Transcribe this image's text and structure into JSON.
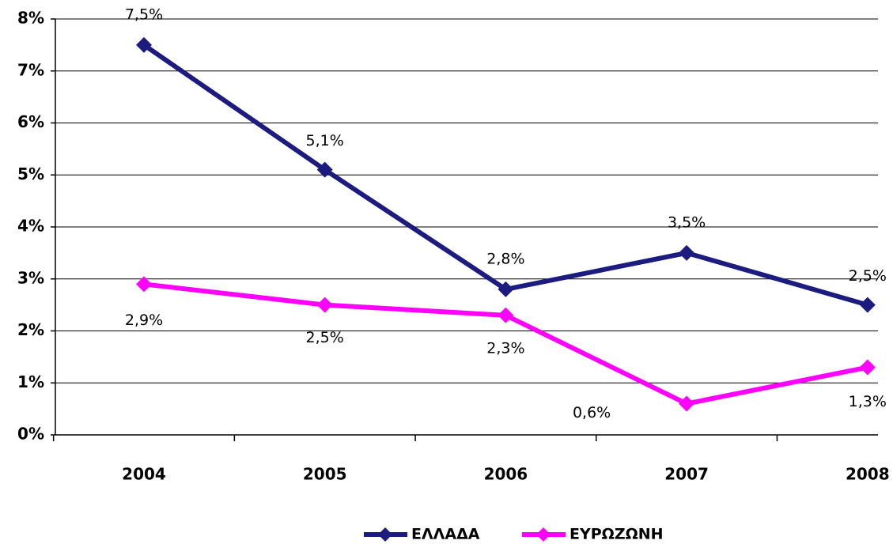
{
  "chart_data": {
    "type": "line",
    "categories": [
      "2004",
      "2005",
      "2006",
      "2007",
      "2008"
    ],
    "series": [
      {
        "name": "ΕΛΛΑΔΑ",
        "color": "#1c1c80",
        "values": [
          7.5,
          5.1,
          2.8,
          3.5,
          2.5
        ],
        "value_labels": [
          "7,5%",
          "5,1%",
          "2,8%",
          "3,5%",
          "2,5%"
        ]
      },
      {
        "name": "ΕΥΡΩΖΩΝΗ",
        "color": "#ff00ff",
        "values": [
          2.9,
          2.5,
          2.3,
          0.6,
          1.3
        ],
        "value_labels": [
          "2,9%",
          "2,5%",
          "2,3%",
          "0,6%",
          "1,3%"
        ]
      }
    ],
    "ylim": [
      0,
      8
    ],
    "yticks": [
      {
        "value": 0,
        "label": "0%"
      },
      {
        "value": 1,
        "label": "1%"
      },
      {
        "value": 2,
        "label": "2%"
      },
      {
        "value": 3,
        "label": "3%"
      },
      {
        "value": 4,
        "label": "4%"
      },
      {
        "value": 5,
        "label": "5%"
      },
      {
        "value": 6,
        "label": "6%"
      },
      {
        "value": 7,
        "label": "7%"
      },
      {
        "value": 8,
        "label": "8%"
      }
    ],
    "grid": true,
    "legend": "bottom"
  }
}
